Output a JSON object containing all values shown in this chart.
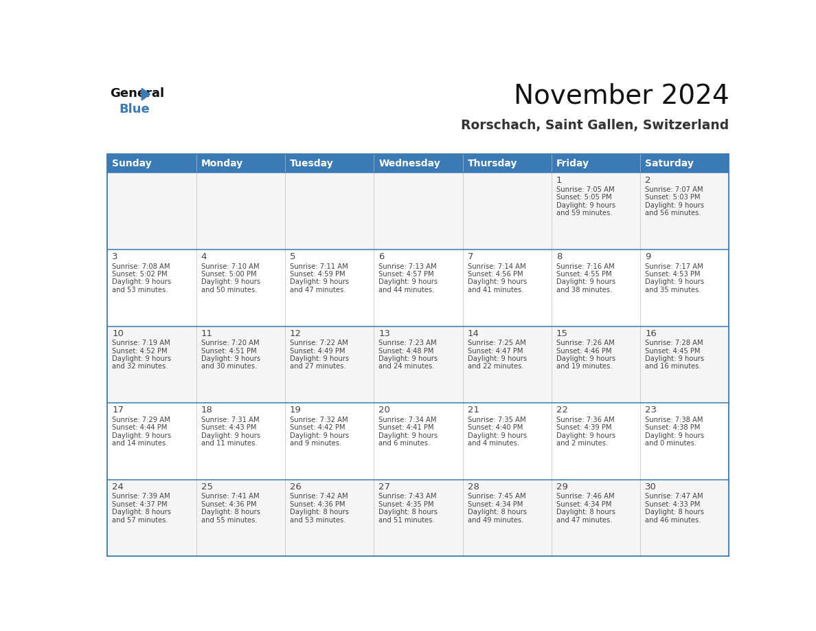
{
  "title": "November 2024",
  "subtitle": "Rorschach, Saint Gallen, Switzerland",
  "header_bg_color": "#3a7ab5",
  "header_text_color": "#ffffff",
  "cell_bg_odd": "#f5f5f5",
  "cell_bg_even": "#ffffff",
  "cell_text_color": "#444444",
  "border_color": "#3a7ab5",
  "days_of_week": [
    "Sunday",
    "Monday",
    "Tuesday",
    "Wednesday",
    "Thursday",
    "Friday",
    "Saturday"
  ],
  "calendar": [
    [
      {
        "day": "",
        "sunrise": "",
        "sunset": "",
        "daylight": ""
      },
      {
        "day": "",
        "sunrise": "",
        "sunset": "",
        "daylight": ""
      },
      {
        "day": "",
        "sunrise": "",
        "sunset": "",
        "daylight": ""
      },
      {
        "day": "",
        "sunrise": "",
        "sunset": "",
        "daylight": ""
      },
      {
        "day": "",
        "sunrise": "",
        "sunset": "",
        "daylight": ""
      },
      {
        "day": "1",
        "sunrise": "7:05 AM",
        "sunset": "5:05 PM",
        "daylight": "9 hours and 59 minutes."
      },
      {
        "day": "2",
        "sunrise": "7:07 AM",
        "sunset": "5:03 PM",
        "daylight": "9 hours and 56 minutes."
      }
    ],
    [
      {
        "day": "3",
        "sunrise": "7:08 AM",
        "sunset": "5:02 PM",
        "daylight": "9 hours and 53 minutes."
      },
      {
        "day": "4",
        "sunrise": "7:10 AM",
        "sunset": "5:00 PM",
        "daylight": "9 hours and 50 minutes."
      },
      {
        "day": "5",
        "sunrise": "7:11 AM",
        "sunset": "4:59 PM",
        "daylight": "9 hours and 47 minutes."
      },
      {
        "day": "6",
        "sunrise": "7:13 AM",
        "sunset": "4:57 PM",
        "daylight": "9 hours and 44 minutes."
      },
      {
        "day": "7",
        "sunrise": "7:14 AM",
        "sunset": "4:56 PM",
        "daylight": "9 hours and 41 minutes."
      },
      {
        "day": "8",
        "sunrise": "7:16 AM",
        "sunset": "4:55 PM",
        "daylight": "9 hours and 38 minutes."
      },
      {
        "day": "9",
        "sunrise": "7:17 AM",
        "sunset": "4:53 PM",
        "daylight": "9 hours and 35 minutes."
      }
    ],
    [
      {
        "day": "10",
        "sunrise": "7:19 AM",
        "sunset": "4:52 PM",
        "daylight": "9 hours and 32 minutes."
      },
      {
        "day": "11",
        "sunrise": "7:20 AM",
        "sunset": "4:51 PM",
        "daylight": "9 hours and 30 minutes."
      },
      {
        "day": "12",
        "sunrise": "7:22 AM",
        "sunset": "4:49 PM",
        "daylight": "9 hours and 27 minutes."
      },
      {
        "day": "13",
        "sunrise": "7:23 AM",
        "sunset": "4:48 PM",
        "daylight": "9 hours and 24 minutes."
      },
      {
        "day": "14",
        "sunrise": "7:25 AM",
        "sunset": "4:47 PM",
        "daylight": "9 hours and 22 minutes."
      },
      {
        "day": "15",
        "sunrise": "7:26 AM",
        "sunset": "4:46 PM",
        "daylight": "9 hours and 19 minutes."
      },
      {
        "day": "16",
        "sunrise": "7:28 AM",
        "sunset": "4:45 PM",
        "daylight": "9 hours and 16 minutes."
      }
    ],
    [
      {
        "day": "17",
        "sunrise": "7:29 AM",
        "sunset": "4:44 PM",
        "daylight": "9 hours and 14 minutes."
      },
      {
        "day": "18",
        "sunrise": "7:31 AM",
        "sunset": "4:43 PM",
        "daylight": "9 hours and 11 minutes."
      },
      {
        "day": "19",
        "sunrise": "7:32 AM",
        "sunset": "4:42 PM",
        "daylight": "9 hours and 9 minutes."
      },
      {
        "day": "20",
        "sunrise": "7:34 AM",
        "sunset": "4:41 PM",
        "daylight": "9 hours and 6 minutes."
      },
      {
        "day": "21",
        "sunrise": "7:35 AM",
        "sunset": "4:40 PM",
        "daylight": "9 hours and 4 minutes."
      },
      {
        "day": "22",
        "sunrise": "7:36 AM",
        "sunset": "4:39 PM",
        "daylight": "9 hours and 2 minutes."
      },
      {
        "day": "23",
        "sunrise": "7:38 AM",
        "sunset": "4:38 PM",
        "daylight": "9 hours and 0 minutes."
      }
    ],
    [
      {
        "day": "24",
        "sunrise": "7:39 AM",
        "sunset": "4:37 PM",
        "daylight": "8 hours and 57 minutes."
      },
      {
        "day": "25",
        "sunrise": "7:41 AM",
        "sunset": "4:36 PM",
        "daylight": "8 hours and 55 minutes."
      },
      {
        "day": "26",
        "sunrise": "7:42 AM",
        "sunset": "4:36 PM",
        "daylight": "8 hours and 53 minutes."
      },
      {
        "day": "27",
        "sunrise": "7:43 AM",
        "sunset": "4:35 PM",
        "daylight": "8 hours and 51 minutes."
      },
      {
        "day": "28",
        "sunrise": "7:45 AM",
        "sunset": "4:34 PM",
        "daylight": "8 hours and 49 minutes."
      },
      {
        "day": "29",
        "sunrise": "7:46 AM",
        "sunset": "4:34 PM",
        "daylight": "8 hours and 47 minutes."
      },
      {
        "day": "30",
        "sunrise": "7:47 AM",
        "sunset": "4:33 PM",
        "daylight": "8 hours and 46 minutes."
      }
    ]
  ]
}
